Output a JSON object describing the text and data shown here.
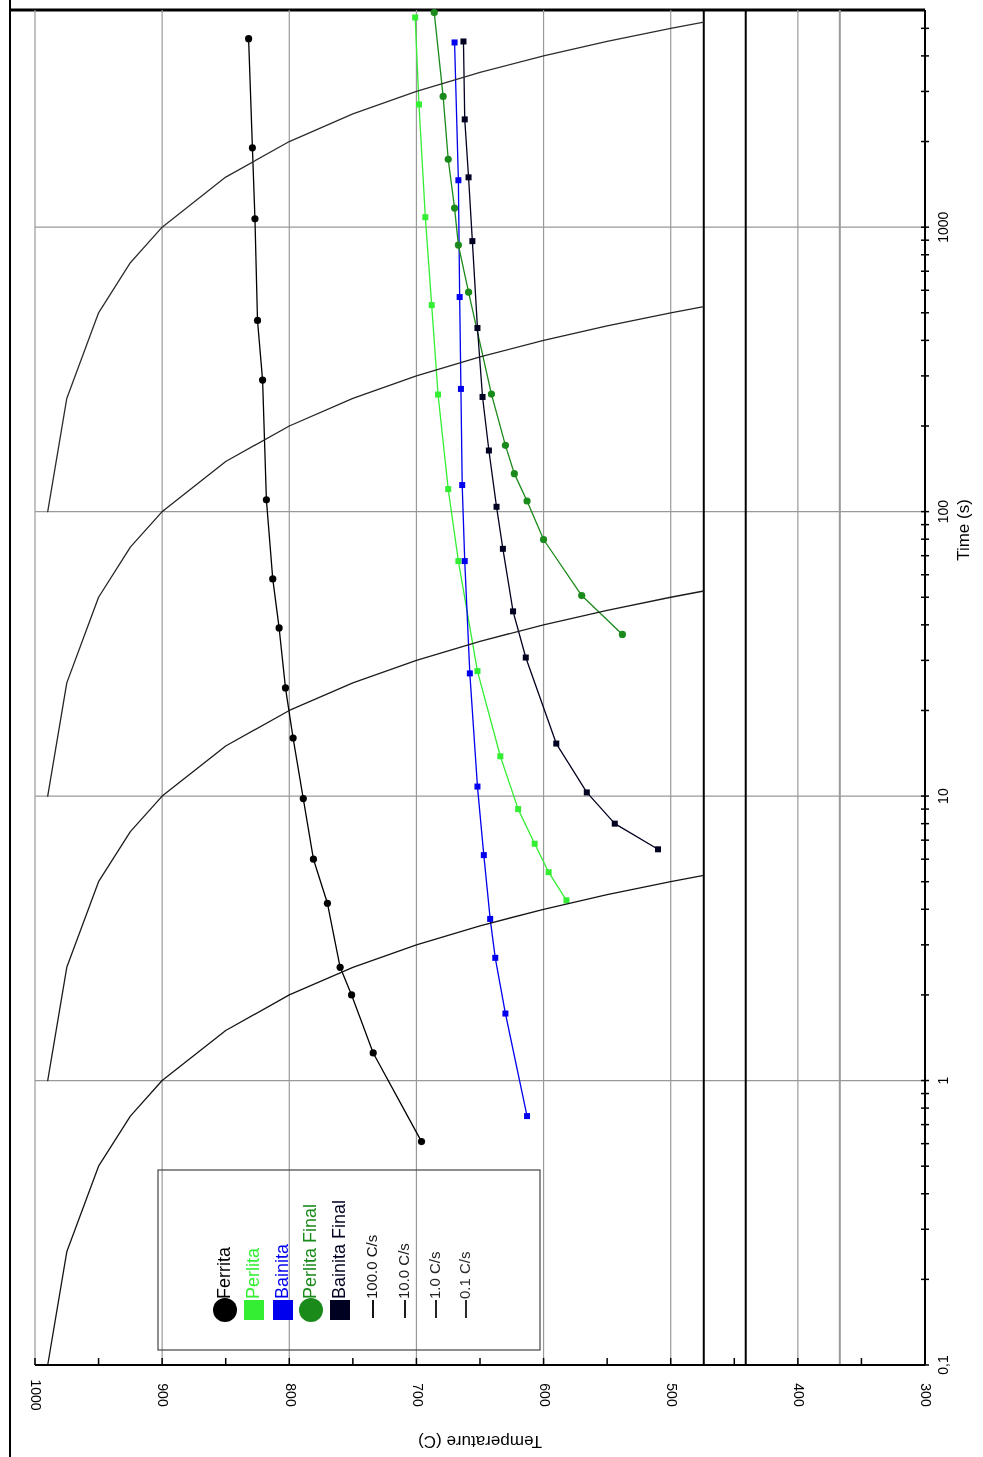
{
  "chart_data": {
    "type": "line",
    "xlabel": "Temperature (C)",
    "ylabel": "Time (s)",
    "log": "y",
    "grid": true,
    "legend": "bottom left",
    "xlim": [
      1000,
      300
    ],
    "ylim": [
      0.1,
      5800
    ],
    "xticks": [
      1000,
      {
        "value": 950,
        "label": null
      },
      900,
      {
        "value": 850,
        "label": null
      },
      800,
      {
        "value": 750,
        "label": null
      },
      700,
      {
        "value": 650,
        "label": null
      },
      600,
      {
        "value": 550,
        "label": null
      },
      500,
      {
        "value": 450,
        "label": null
      },
      400,
      {
        "value": 350,
        "label": null
      },
      300
    ],
    "yticks": [
      {
        "value": 0.1,
        "label": "0,1"
      },
      {
        "value": 0.2,
        "label": null
      },
      {
        "value": 0.3,
        "label": null
      },
      {
        "value": 0.4,
        "label": null
      },
      {
        "value": 0.5,
        "label": null
      },
      {
        "value": 0.6,
        "label": null
      },
      {
        "value": 0.7,
        "label": null
      },
      {
        "value": 0.8,
        "label": null
      },
      {
        "value": 0.9,
        "label": null
      },
      1,
      {
        "value": 2,
        "label": null
      },
      {
        "value": 3,
        "label": null
      },
      {
        "value": 4,
        "label": null
      },
      {
        "value": 5,
        "label": null
      },
      {
        "value": 6,
        "label": null
      },
      {
        "value": 7,
        "label": null
      },
      {
        "value": 8,
        "label": null
      },
      {
        "value": 9,
        "label": null
      },
      10,
      {
        "value": 20,
        "label": null
      },
      {
        "value": 30,
        "label": null
      },
      {
        "value": 40,
        "label": null
      },
      {
        "value": 50,
        "label": null
      },
      {
        "value": 60,
        "label": null
      },
      {
        "value": 70,
        "label": null
      },
      {
        "value": 80,
        "label": null
      },
      {
        "value": 90,
        "label": null
      },
      100,
      {
        "value": 200,
        "label": null
      },
      {
        "value": 300,
        "label": null
      },
      {
        "value": 400,
        "label": null
      },
      {
        "value": 500,
        "label": null
      },
      {
        "value": 600,
        "label": null
      },
      {
        "value": 700,
        "label": null
      },
      {
        "value": 800,
        "label": null
      },
      {
        "value": 900,
        "label": null
      },
      1000,
      {
        "value": 2000,
        "label": null
      },
      {
        "value": 3000,
        "label": null
      },
      {
        "value": 4000,
        "label": null
      },
      {
        "value": 5000,
        "label": null
      }
    ],
    "ref_lines": [
      {
        "axis": "x",
        "value": 474,
        "color": "#000000"
      },
      {
        "axis": "x",
        "value": 441,
        "color": "#000000"
      },
      {
        "axis": "x",
        "value": 367,
        "color": "#999999"
      }
    ],
    "series": [
      {
        "name": "Ferrita",
        "color": "#000000",
        "marker": "circle",
        "x": [
          696,
          734,
          751,
          760,
          770,
          781,
          789,
          797,
          803,
          808,
          813,
          818,
          821,
          825,
          827,
          829,
          832
        ],
        "values": [
          0.61,
          1.25,
          2.0,
          2.5,
          4.2,
          6.0,
          9.8,
          16,
          24,
          39,
          58,
          110,
          290,
          470,
          1070,
          1900,
          4600
        ]
      },
      {
        "name": "Perlita",
        "color": "#33ee33",
        "marker": "square",
        "x": [
          582,
          596,
          607,
          620,
          634,
          652,
          667,
          675,
          683,
          688,
          693,
          698,
          701
        ],
        "values": [
          4.3,
          5.4,
          6.8,
          9.0,
          13.8,
          27.5,
          67,
          120,
          258,
          532,
          1084,
          2700,
          5460
        ]
      },
      {
        "name": "Bainita",
        "color": "#0000ee",
        "marker": "square",
        "x": [
          613,
          630,
          638,
          642,
          647,
          652,
          658,
          662,
          664,
          665,
          666,
          667,
          670
        ],
        "values": [
          0.75,
          1.72,
          2.7,
          3.7,
          6.2,
          10.8,
          27,
          67,
          124,
          270,
          568,
          1462,
          4460
        ]
      },
      {
        "name": "Perlita Final",
        "color": "#1a8a1a",
        "marker": "circle",
        "x": [
          538,
          570,
          600,
          613,
          623,
          630,
          641,
          659,
          667,
          670,
          675,
          679,
          686
        ],
        "values": [
          37,
          50.7,
          79.8,
          109,
          136,
          171,
          259,
          591,
          865,
          1167,
          1733,
          2882,
          5680
        ]
      },
      {
        "name": "Bainita Final",
        "color": "#000020",
        "marker": "square",
        "x": [
          510,
          544,
          566,
          590,
          614,
          624,
          632,
          637,
          643,
          648,
          652,
          656,
          659,
          662,
          663
        ],
        "values": [
          6.5,
          8.0,
          10.3,
          15.3,
          30.7,
          44.6,
          74,
          104,
          164,
          253,
          442,
          893,
          1497,
          2393,
          4496
        ]
      },
      {
        "name": "100.0 C/s",
        "color": "#141414",
        "marker": "none",
        "x": [
          990,
          975,
          950,
          925,
          900,
          850,
          800,
          750,
          700,
          650,
          600,
          550,
          500,
          474
        ],
        "values": [
          0.1,
          0.25,
          0.5,
          0.75,
          1,
          1.5,
          2,
          2.5,
          3,
          3.5,
          4,
          4.5,
          5,
          5.26
        ]
      },
      {
        "name": "10.0 C/s",
        "color": "#1c1c1c",
        "marker": "none",
        "x": [
          990,
          975,
          950,
          925,
          900,
          850,
          800,
          750,
          700,
          650,
          600,
          550,
          500,
          474
        ],
        "values": [
          1,
          2.5,
          5,
          7.5,
          10,
          15,
          20,
          25,
          30,
          35,
          40,
          45,
          50,
          52.6
        ]
      },
      {
        "name": "1.0 C/s",
        "color": "#242424",
        "marker": "none",
        "x": [
          990,
          975,
          950,
          925,
          900,
          850,
          800,
          750,
          700,
          650,
          600,
          550,
          500,
          474
        ],
        "values": [
          10,
          25,
          50,
          75,
          100,
          150,
          200,
          250,
          300,
          350,
          400,
          450,
          500,
          526
        ]
      },
      {
        "name": "0.1 C/s",
        "color": "#2c2c2c",
        "marker": "none",
        "x": [
          990,
          975,
          950,
          925,
          900,
          850,
          800,
          750,
          700,
          650,
          600,
          550,
          500,
          474
        ],
        "values": [
          100,
          250,
          500,
          750,
          1000,
          1500,
          2000,
          2500,
          3000,
          3500,
          4000,
          4500,
          5000,
          5260
        ]
      }
    ]
  }
}
